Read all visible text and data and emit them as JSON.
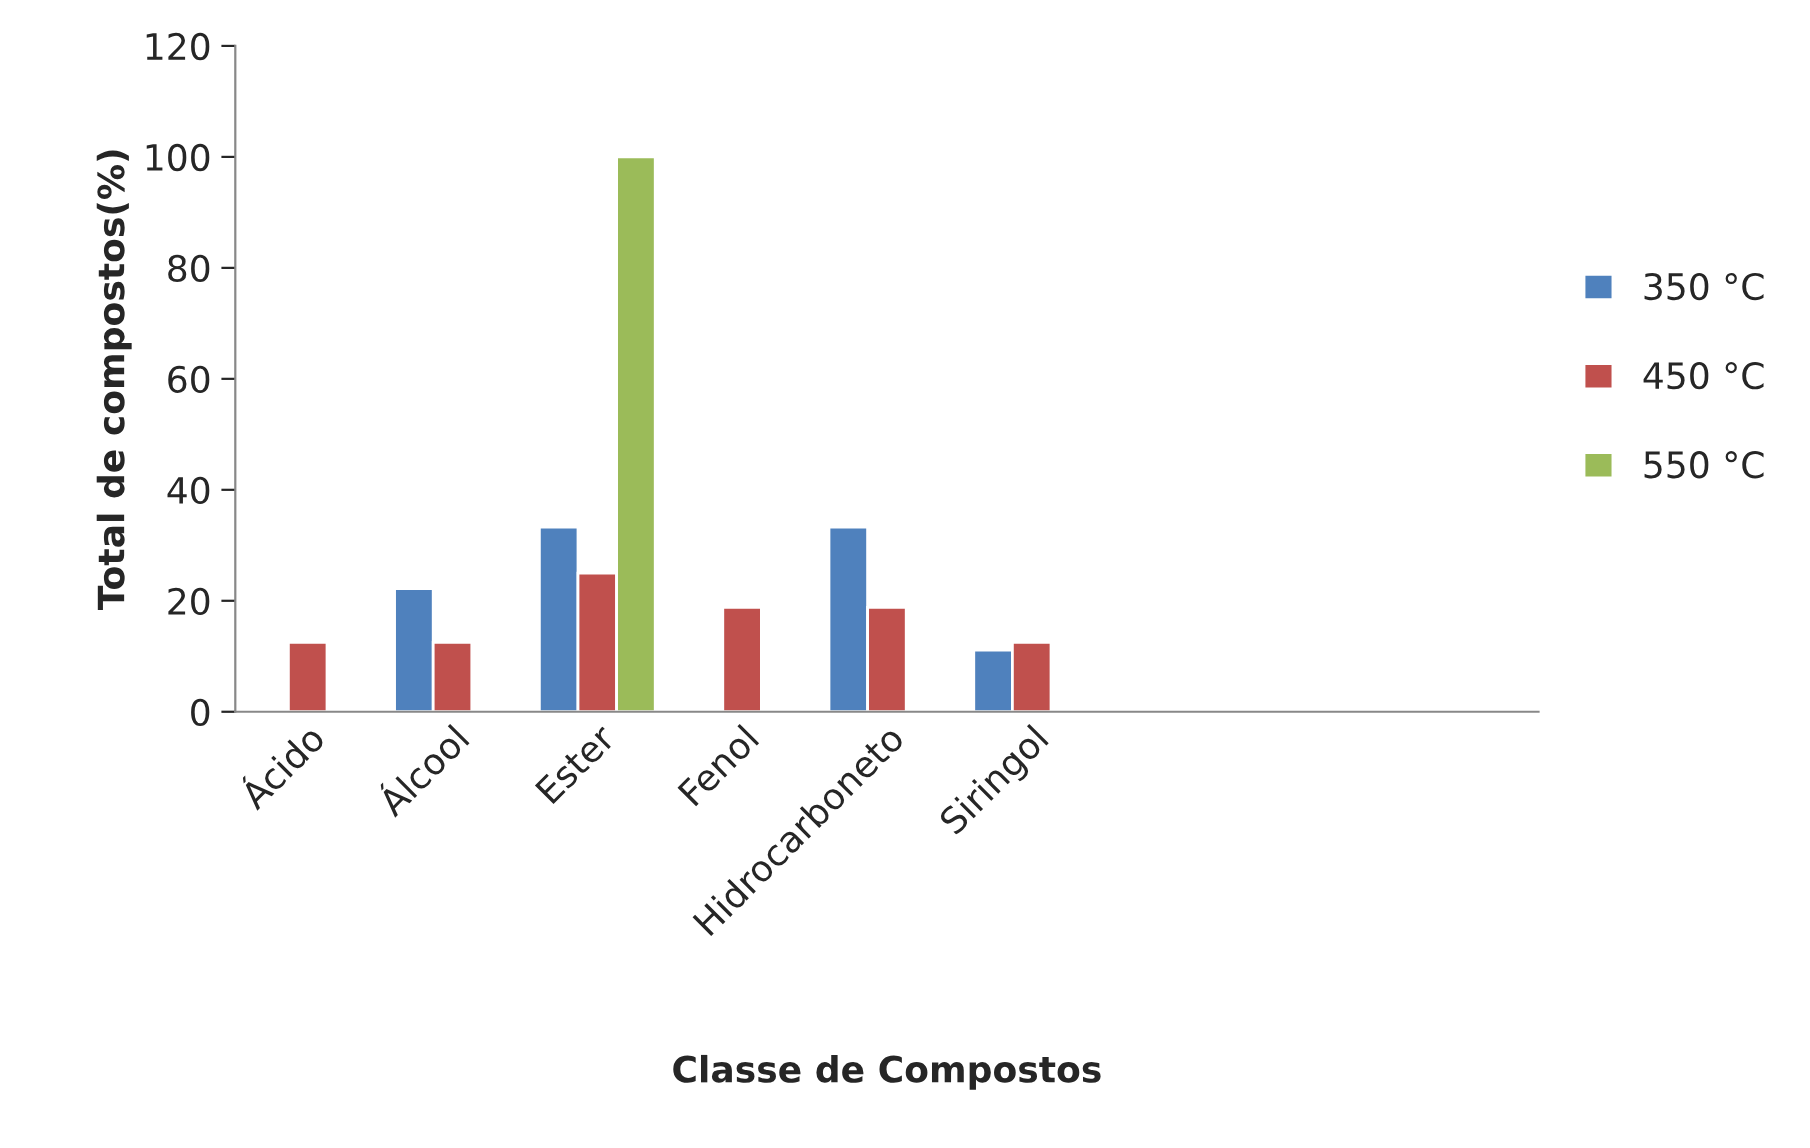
{
  "chart_data": {
    "type": "bar",
    "xlabel": "Classe de Compostos",
    "ylabel": "Total de compostos(%)",
    "categories": [
      "Ácido",
      "Álcool",
      "Ester",
      "Fenol",
      "Hidrocarboneto",
      "Siringol",
      null,
      null,
      null
    ],
    "series": [
      {
        "name": "350 °C",
        "color": "#4f81bd",
        "values": [
          null,
          22.2,
          33.3,
          null,
          33.3,
          11.1,
          null,
          null,
          null
        ]
      },
      {
        "name": "450 °C",
        "color": "#c0504d",
        "values": [
          12.5,
          12.5,
          25,
          18.8,
          18.8,
          12.5,
          null,
          null,
          null
        ]
      },
      {
        "name": "550 °C",
        "color": "#9bbb59",
        "values": [
          null,
          null,
          100,
          null,
          null,
          null,
          null,
          null,
          null
        ]
      }
    ],
    "ylim": [
      0,
      120
    ],
    "yticks": [
      0,
      20,
      40,
      60,
      80,
      100,
      120
    ],
    "grid": false,
    "legend": "right"
  }
}
